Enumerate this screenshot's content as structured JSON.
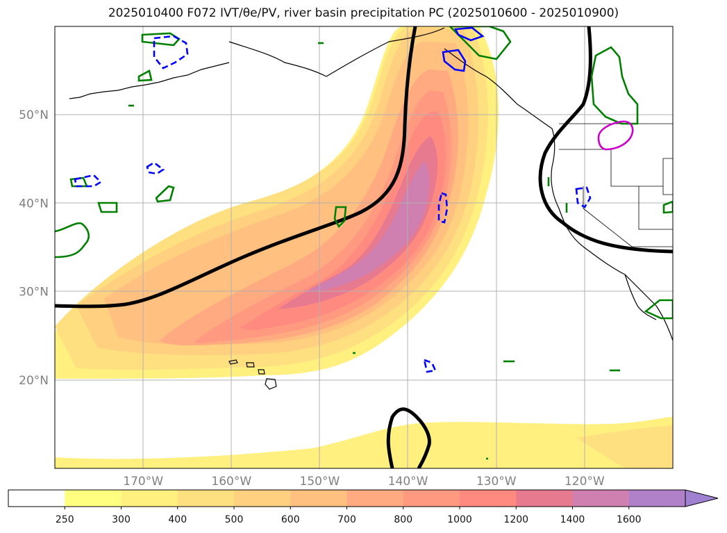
{
  "title": "2025010400 F072 IVT/θe/PV, river basin precipitation PC (2025010600 - 2025010900)",
  "map": {
    "lon_range": [
      -180,
      -110
    ],
    "lat_range": [
      10,
      60
    ],
    "lat_labels": [
      {
        "lat": 50,
        "label": "50°N"
      },
      {
        "lat": 40,
        "label": "40°N"
      },
      {
        "lat": 30,
        "label": "30°N"
      },
      {
        "lat": 20,
        "label": "20°N"
      }
    ],
    "lon_labels": [
      {
        "lon": -170,
        "label": "170°W"
      },
      {
        "lon": -160,
        "label": "160°W"
      },
      {
        "lon": -150,
        "label": "150°W"
      },
      {
        "lon": -140,
        "label": "140°W"
      },
      {
        "lon": -130,
        "label": "130°W"
      },
      {
        "lon": -120,
        "label": "120°W"
      }
    ],
    "gridlines": true
  },
  "colorbar": {
    "levels": [
      "250",
      "300",
      "400",
      "500",
      "600",
      "700",
      "800",
      "1000",
      "1200",
      "1400",
      "1600"
    ],
    "colors": [
      "#ffff80",
      "#fff080",
      "#ffe080",
      "#ffd080",
      "#ffc080",
      "#ffaa80",
      "#ff9a80",
      "#ff8a80",
      "#e87a90",
      "#d080b0",
      "#b080c8",
      "#a080d0"
    ],
    "extend": "max"
  },
  "colors": {
    "pc_positive": "#008000",
    "pc_negative": "#0000ff",
    "pc_magenta": "#cc00cc",
    "theta_e": "#000000",
    "coast": "#000000"
  }
}
